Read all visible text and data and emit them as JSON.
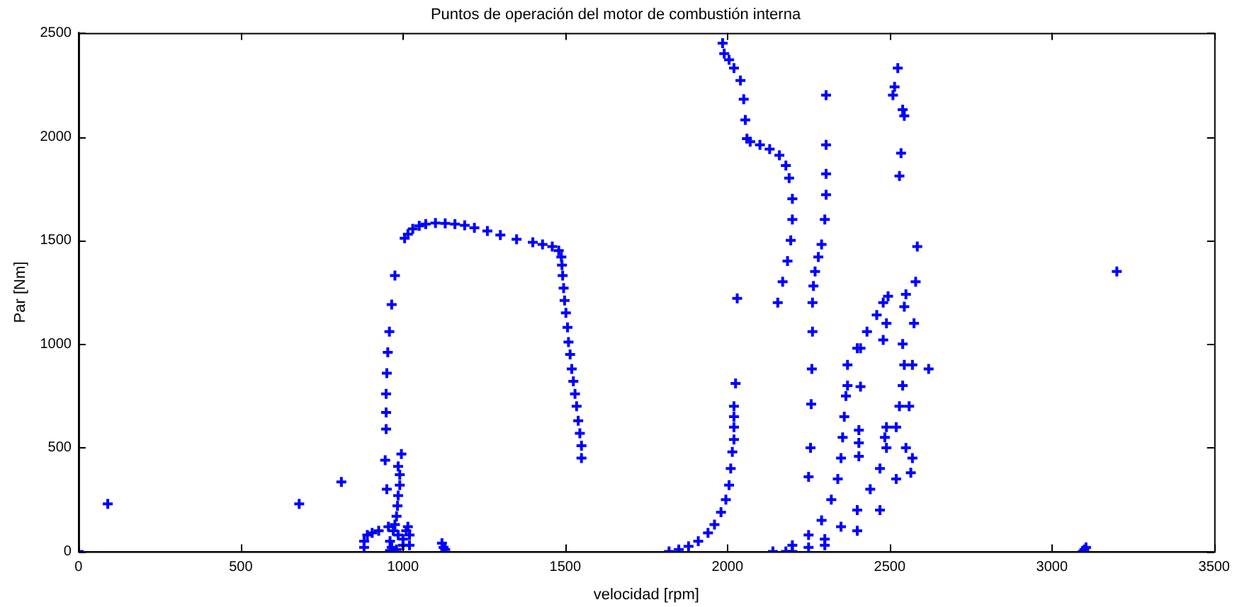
{
  "chart_data": {
    "type": "scatter",
    "title": "Puntos de operación del motor de combustión interna",
    "xlabel": "velocidad [rpm]",
    "ylabel": "Par [Nm]",
    "xlim": [
      0,
      3500
    ],
    "ylim": [
      0,
      2500
    ],
    "xticks": [
      0,
      500,
      1000,
      1500,
      2000,
      2500,
      3000,
      3500
    ],
    "yticks": [
      0,
      500,
      1000,
      1500,
      2000,
      2500
    ],
    "grid": false,
    "legend": false,
    "marker": "cross",
    "series": [
      {
        "color": "#0000ff",
        "x": [
          0,
          90,
          680,
          810,
          975,
          965,
          958,
          953,
          950,
          948,
          948,
          948,
          945,
          950,
          955,
          960,
          965,
          995,
          985,
          990,
          990,
          985,
          983,
          980,
          975,
          970,
          985,
          1000,
          1010,
          1015,
          1020,
          1000,
          980,
          960,
          1020,
          880,
          880,
          890,
          905,
          925,
          1120,
          1125,
          1130,
          1005,
          1015,
          1030,
          1050,
          1070,
          1100,
          1130,
          1160,
          1190,
          1220,
          1260,
          1300,
          1350,
          1400,
          1430,
          1460,
          1480,
          1488,
          1490,
          1492,
          1495,
          1498,
          1502,
          1507,
          1510,
          1515,
          1520,
          1525,
          1530,
          1535,
          1540,
          1545,
          1550,
          1550,
          1820,
          1850,
          1880,
          1910,
          1940,
          1960,
          1980,
          1995,
          2005,
          2010,
          2015,
          2020,
          2020,
          2020,
          2020,
          2025,
          2030,
          1985,
          1990,
          2005,
          2020,
          2040,
          2050,
          2055,
          2060,
          2070,
          2100,
          2130,
          2160,
          2180,
          2190,
          2200,
          2200,
          2195,
          2185,
          2170,
          2155,
          2304,
          2304,
          2304,
          2304,
          2300,
          2290,
          2280,
          2270,
          2265,
          2262,
          2262,
          2260,
          2258,
          2256,
          2250,
          2140,
          2200,
          2250,
          2290,
          2320,
          2340,
          2350,
          2355,
          2360,
          2365,
          2370,
          2370,
          2400,
          2430,
          2460,
          2480,
          2495,
          2490,
          2480,
          2180,
          2250,
          2300,
          2350,
          2400,
          2440,
          2470,
          2490,
          2490,
          2485,
          2200,
          2300,
          2400,
          2470,
          2520,
          2550,
          2560,
          2570,
          2575,
          2580,
          2585,
          2540,
          2545,
          2540,
          2530,
          2520,
          2410,
          2410,
          2405,
          2405,
          2405,
          2525,
          2515,
          2510,
          2540,
          2545,
          2535,
          2530,
          2550,
          2545,
          2620,
          2570,
          2565,
          3095,
          3100,
          3105,
          3200
        ],
        "values": [
          0,
          230,
          230,
          335,
          1330,
          1190,
          1060,
          960,
          860,
          760,
          670,
          590,
          440,
          300,
          120,
          50,
          20,
          470,
          410,
          370,
          320,
          270,
          220,
          170,
          130,
          100,
          80,
          60,
          100,
          120,
          80,
          30,
          10,
          5,
          30,
          20,
          50,
          80,
          90,
          100,
          40,
          20,
          10,
          1510,
          1530,
          1555,
          1570,
          1578,
          1583,
          1582,
          1578,
          1572,
          1560,
          1545,
          1525,
          1505,
          1490,
          1480,
          1470,
          1450,
          1420,
          1380,
          1330,
          1270,
          1210,
          1150,
          1080,
          1010,
          950,
          880,
          820,
          760,
          700,
          630,
          570,
          510,
          450,
          0,
          10,
          25,
          50,
          90,
          130,
          190,
          250,
          320,
          400,
          480,
          540,
          600,
          650,
          700,
          810,
          1220,
          2450,
          2400,
          2370,
          2330,
          2270,
          2180,
          2080,
          1990,
          1975,
          1960,
          1940,
          1910,
          1860,
          1800,
          1700,
          1600,
          1500,
          1400,
          1300,
          1200,
          2200,
          1960,
          1820,
          1720,
          1600,
          1480,
          1420,
          1350,
          1280,
          1200,
          1060,
          880,
          710,
          500,
          360,
          0,
          30,
          80,
          150,
          250,
          350,
          450,
          550,
          650,
          750,
          800,
          900,
          980,
          1060,
          1140,
          1200,
          1230,
          1100,
          1020,
          0,
          20,
          60,
          120,
          200,
          300,
          400,
          500,
          600,
          550,
          0,
          30,
          100,
          200,
          350,
          500,
          700,
          900,
          1100,
          1300,
          1470,
          1000,
          900,
          800,
          700,
          600,
          980,
          795,
          585,
          524,
          459,
          2330,
          2240,
          2200,
          2130,
          2100,
          1920,
          1810,
          1240,
          1180,
          880,
          450,
          380,
          0,
          10,
          20,
          1350
        ]
      }
    ]
  }
}
